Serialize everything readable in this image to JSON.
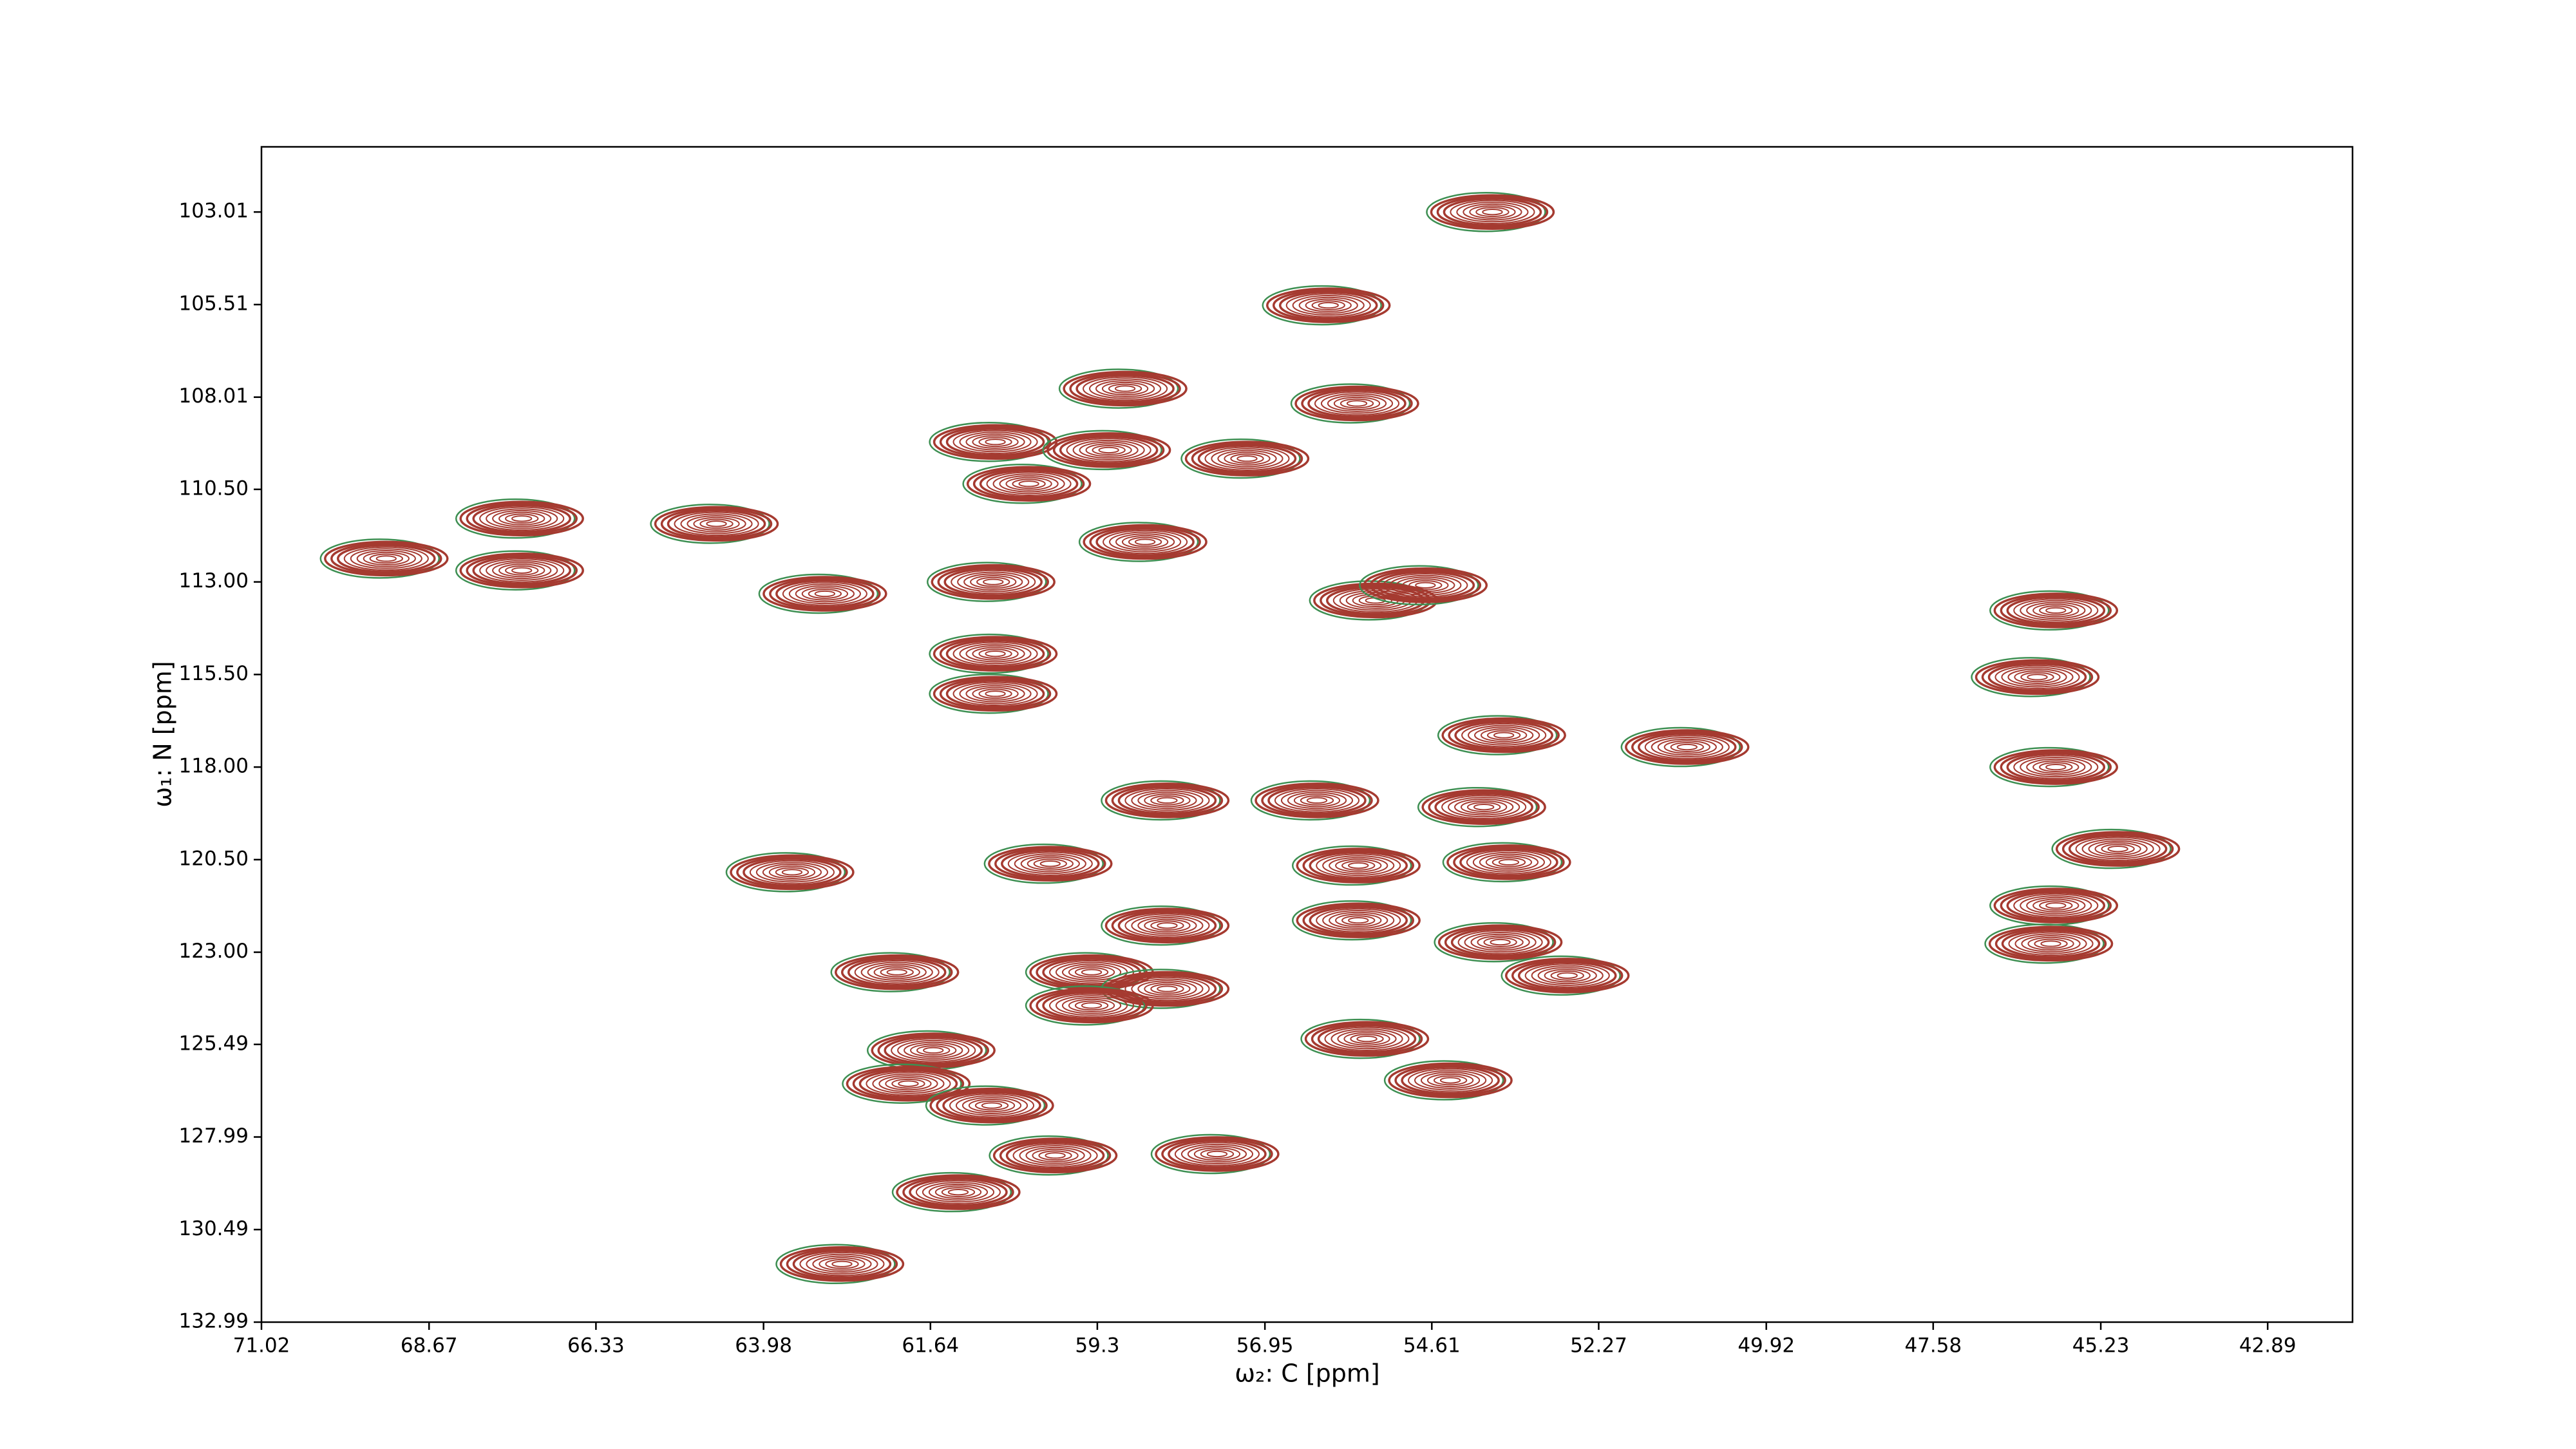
{
  "chart_data": {
    "type": "contour",
    "xlabel": "ω₂: C [ppm]",
    "ylabel": "ω₁: N [ppm]",
    "xlim": [
      71.02,
      41.7
    ],
    "ylim": [
      132.99,
      101.25
    ],
    "xticks": [
      71.02,
      68.67,
      66.33,
      63.98,
      61.64,
      59.3,
      56.95,
      54.61,
      52.27,
      49.92,
      47.58,
      45.23,
      42.89
    ],
    "yticks": [
      103.01,
      105.51,
      108.01,
      {
        "value": 110.5,
        "label": "110.50"
      },
      {
        "value": 113,
        "label": "113.00"
      },
      {
        "value": 115.5,
        "label": "115.50"
      },
      {
        "value": 118,
        "label": "118.00"
      },
      {
        "value": 120.5,
        "label": "120.50"
      },
      {
        "value": 123,
        "label": "123.00"
      },
      125.49,
      127.99,
      130.49,
      132.99
    ],
    "contour_colors": [
      "#a53a30",
      "#3d8f52"
    ],
    "x": [
      53.76,
      56.06,
      58.91,
      55.66,
      60.73,
      59.14,
      57.2,
      60.26,
      58.63,
      64.64,
      67.37,
      67.37,
      69.27,
      63.12,
      60.76,
      55.4,
      54.7,
      45.86,
      60.73,
      60.73,
      46.12,
      53.6,
      51.03,
      45.86,
      58.32,
      56.22,
      53.88,
      44.99,
      63.58,
      59.96,
      55.64,
      53.53,
      45.86,
      58.32,
      55.64,
      53.65,
      45.93,
      62.11,
      59.38,
      52.71,
      58.32,
      59.38,
      55.52,
      61.6,
      54.35,
      61.95,
      60.78,
      59.89,
      57.62,
      61.25,
      62.88
    ],
    "y": [
      103.01,
      105.53,
      107.78,
      108.18,
      109.22,
      109.44,
      109.67,
      110.35,
      111.92,
      111.43,
      111.29,
      112.69,
      112.37,
      113.32,
      113.0,
      113.5,
      113.09,
      113.77,
      114.94,
      116.02,
      115.57,
      117.14,
      117.46,
      118.0,
      118.9,
      118.9,
      119.08,
      120.21,
      120.84,
      120.61,
      120.66,
      120.57,
      121.74,
      122.28,
      122.14,
      122.73,
      122.77,
      123.54,
      123.54,
      123.63,
      123.99,
      124.44,
      125.34,
      125.65,
      126.46,
      126.55,
      127.14,
      128.49,
      128.45,
      129.48,
      131.42
    ]
  }
}
